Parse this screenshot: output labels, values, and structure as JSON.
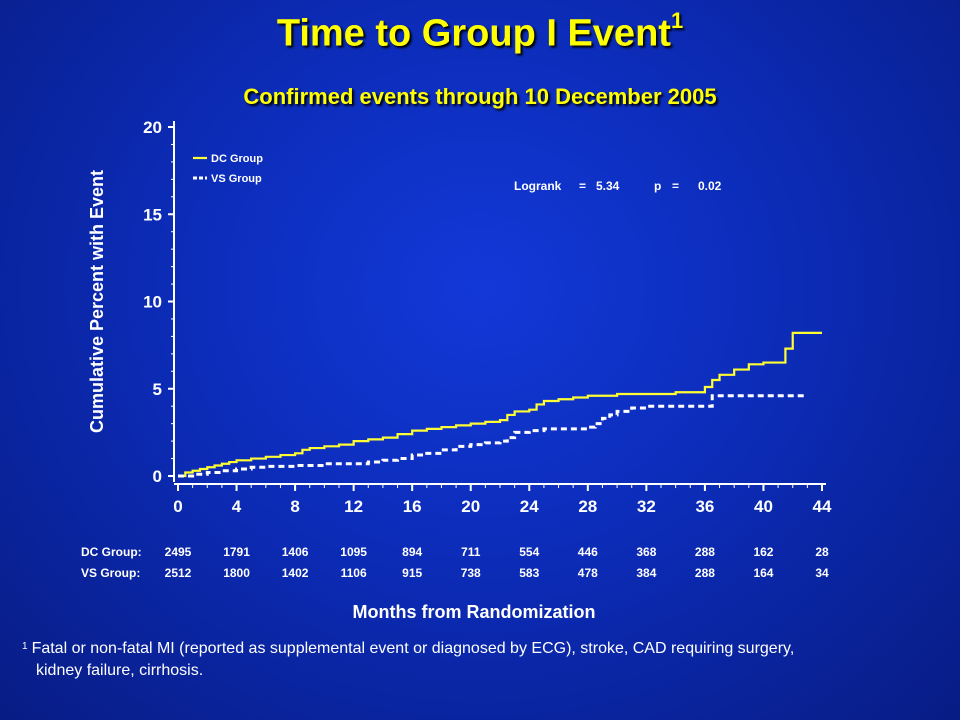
{
  "title": "Time to Group I Event",
  "title_superscript": "1",
  "subtitle": "Confirmed events through 10 December 2005",
  "footnote": {
    "mark": "1",
    "line1": "Fatal or non-fatal MI (reported as supplemental event or diagnosed by ECG), stroke, CAD requiring surgery,",
    "line2": "kidney failure, cirrhosis."
  },
  "colors": {
    "background": "#0c2cb8",
    "dc_line": "#ffff33",
    "vs_line": "#ffffff",
    "title": "#ffff00"
  },
  "chart_data": {
    "type": "line",
    "step": true,
    "xlabel": "Months from Randomization",
    "ylabel": "Cumulative Percent with Event",
    "xlim": [
      0,
      44
    ],
    "ylim": [
      0,
      20
    ],
    "xticks": [
      0,
      4,
      8,
      12,
      16,
      20,
      24,
      28,
      32,
      36,
      40,
      44
    ],
    "yticks": [
      0,
      5,
      10,
      15,
      20
    ],
    "legend_position": "top-left",
    "annotation": {
      "logrank_label": "Logrank",
      "logrank_eq": "=",
      "logrank_value": "5.34",
      "p_label": "p",
      "p_eq": "=",
      "p_value": "0.02"
    },
    "series": [
      {
        "name": "DC Group",
        "style": "solid",
        "x": [
          0,
          0.5,
          1,
          1.5,
          2,
          2.5,
          3,
          3.5,
          4,
          5,
          6,
          7,
          8,
          8.5,
          9,
          10,
          11,
          12,
          13,
          14,
          15,
          16,
          17,
          18,
          19,
          20,
          21,
          22,
          22.5,
          23,
          24,
          24.5,
          25,
          26,
          27,
          28,
          29,
          30,
          32,
          34,
          35,
          36,
          36.5,
          37,
          38,
          39,
          40,
          41,
          41.5,
          42,
          43,
          44
        ],
        "y": [
          0,
          0.2,
          0.3,
          0.4,
          0.5,
          0.6,
          0.7,
          0.8,
          0.9,
          1.0,
          1.1,
          1.2,
          1.3,
          1.5,
          1.6,
          1.7,
          1.8,
          2.0,
          2.1,
          2.2,
          2.4,
          2.6,
          2.7,
          2.8,
          2.9,
          3.0,
          3.1,
          3.2,
          3.5,
          3.7,
          3.8,
          4.1,
          4.3,
          4.4,
          4.5,
          4.6,
          4.6,
          4.7,
          4.7,
          4.8,
          4.8,
          5.1,
          5.5,
          5.8,
          6.1,
          6.4,
          6.5,
          6.5,
          7.3,
          8.2,
          8.2,
          8.2
        ]
      },
      {
        "name": "VS Group",
        "style": "dashed",
        "x": [
          0,
          1,
          2,
          3,
          4,
          5,
          6,
          8,
          10,
          12,
          13,
          14,
          15,
          16,
          17,
          18,
          19,
          20,
          21,
          22,
          22.5,
          23,
          24,
          25,
          26,
          27,
          28,
          28.5,
          29,
          29.5,
          30,
          31,
          32,
          34,
          35,
          36,
          36.5,
          37,
          40,
          42,
          43
        ],
        "y": [
          0,
          0.1,
          0.2,
          0.3,
          0.4,
          0.5,
          0.55,
          0.6,
          0.7,
          0.7,
          0.8,
          0.9,
          1.0,
          1.2,
          1.3,
          1.5,
          1.7,
          1.8,
          1.9,
          2.0,
          2.2,
          2.5,
          2.6,
          2.7,
          2.7,
          2.7,
          2.8,
          3.0,
          3.3,
          3.5,
          3.7,
          3.9,
          4.0,
          4.0,
          4.0,
          4.0,
          4.6,
          4.6,
          4.6,
          4.6,
          4.6
        ]
      }
    ],
    "risk_table": {
      "rows": [
        {
          "label": "DC Group:",
          "values": [
            "2495",
            "1791",
            "1406",
            "1095",
            "894",
            "711",
            "554",
            "446",
            "368",
            "288",
            "162",
            "28"
          ]
        },
        {
          "label": "VS Group:",
          "values": [
            "2512",
            "1800",
            "1402",
            "1106",
            "915",
            "738",
            "583",
            "478",
            "384",
            "288",
            "164",
            "34"
          ]
        }
      ]
    }
  }
}
